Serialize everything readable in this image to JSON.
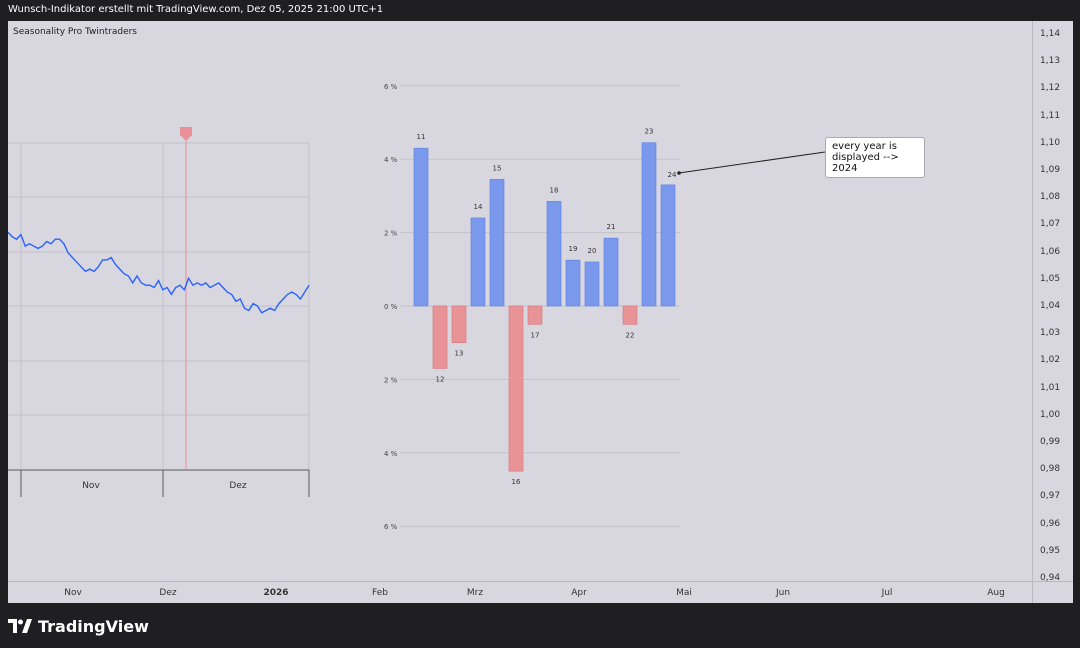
{
  "header": {
    "title": "Wunsch-Indikator erstellt mit TradingView.com, Dez 05, 2025 21:00 UTC+1"
  },
  "indicator": {
    "name": "Seasonality Pro Twintraders"
  },
  "price_axis": {
    "labels": [
      "1,14",
      "1,13",
      "1,12",
      "1,11",
      "1,10",
      "1,09",
      "1,08",
      "1,07",
      "1,06",
      "1,05",
      "1,04",
      "1,03",
      "1,02",
      "1,01",
      "1,00",
      "0,99",
      "0,98",
      "0,97",
      "0,96",
      "0,95",
      "0,94"
    ]
  },
  "time_axis": {
    "labels": [
      "Nov",
      "Dez",
      "2026",
      "Feb",
      "Mrz",
      "Apr",
      "Mai",
      "Jun",
      "Jul",
      "Aug"
    ]
  },
  "inset_chart": {
    "month_labels": [
      "Nov",
      "Dez"
    ]
  },
  "callout": {
    "text": "every year is displayed --> 2024"
  },
  "footer": {
    "brand": "TradingView"
  },
  "colors": {
    "positive_bar": "#7b99ec",
    "negative_bar": "#e89396",
    "price_line": "#2962ff",
    "marker": "#e98f96"
  },
  "chart_data": {
    "type": "bar",
    "categories": [
      "11",
      "12",
      "13",
      "14",
      "15",
      "16",
      "17",
      "18",
      "19",
      "20",
      "21",
      "22",
      "23",
      "24"
    ],
    "values": [
      4.3,
      -1.7,
      -1.0,
      2.4,
      3.45,
      -4.5,
      -0.5,
      2.85,
      1.25,
      1.2,
      1.85,
      -0.5,
      4.45,
      3.3
    ],
    "ylim": [
      -6,
      6
    ],
    "ytick_labels": [
      {
        "value": 6,
        "label": "6 %"
      },
      {
        "value": 4,
        "label": "4 %"
      },
      {
        "value": 2,
        "label": "2 %"
      },
      {
        "value": 0,
        "label": "0 %"
      },
      {
        "value": -2,
        "label": "2 %"
      },
      {
        "value": -4,
        "label": "4 %"
      },
      {
        "value": -6,
        "label": "6 %"
      }
    ],
    "price_line": [
      1.069,
      1.067,
      1.066,
      1.068,
      1.063,
      1.064,
      1.063,
      1.062,
      1.063,
      1.065,
      1.064,
      1.066,
      1.066,
      1.064,
      1.06,
      1.058,
      1.056,
      1.054,
      1.052,
      1.053,
      1.052,
      1.054,
      1.057,
      1.057,
      1.058,
      1.055,
      1.053,
      1.051,
      1.05,
      1.047,
      1.05,
      1.047,
      1.046,
      1.046,
      1.045,
      1.048,
      1.044,
      1.045,
      1.042,
      1.045,
      1.046,
      1.044,
      1.049,
      1.046,
      1.047,
      1.046,
      1.047,
      1.045,
      1.046,
      1.047,
      1.045,
      1.043,
      1.042,
      1.039,
      1.04,
      1.036,
      1.035,
      1.038,
      1.037,
      1.034,
      1.035,
      1.036,
      1.035,
      1.038,
      1.04,
      1.042,
      1.043,
      1.042,
      1.04,
      1.043,
      1.046
    ]
  }
}
